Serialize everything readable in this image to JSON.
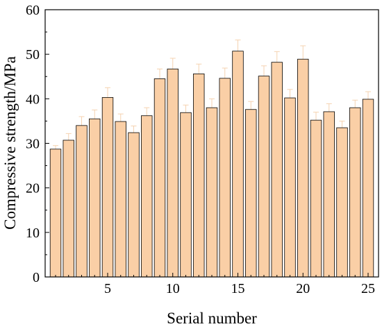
{
  "chart_data": {
    "type": "bar",
    "xlabel": "Serial number",
    "ylabel": "Compressive strength/MPa",
    "ylim": [
      0,
      60
    ],
    "xlim": [
      0.2,
      25.8
    ],
    "x_ticks": [
      5,
      10,
      15,
      20,
      25
    ],
    "y_ticks": [
      0,
      10,
      20,
      30,
      40,
      50,
      60
    ],
    "grid": false,
    "bar_color": "#FACFA6",
    "bar_edge_color": "#000000",
    "error_bar_color": "#F5D2B0",
    "categories": [
      1,
      2,
      3,
      4,
      5,
      6,
      7,
      8,
      9,
      10,
      11,
      12,
      13,
      14,
      15,
      16,
      17,
      18,
      19,
      20,
      21,
      22,
      23,
      24,
      25
    ],
    "values": [
      28.7,
      30.7,
      34.0,
      35.5,
      40.3,
      34.9,
      32.4,
      36.2,
      44.5,
      46.7,
      36.9,
      45.6,
      38.0,
      44.6,
      50.7,
      37.6,
      45.1,
      48.2,
      40.2,
      48.9,
      35.2,
      37.1,
      33.5,
      38.0,
      39.9
    ],
    "errors": [
      0.8,
      1.5,
      2.0,
      2.0,
      2.2,
      1.7,
      1.5,
      1.8,
      2.2,
      2.4,
      1.7,
      2.2,
      2.0,
      2.3,
      2.5,
      1.8,
      2.3,
      2.4,
      1.9,
      3.0,
      1.8,
      1.8,
      1.5,
      1.7,
      1.7
    ]
  }
}
